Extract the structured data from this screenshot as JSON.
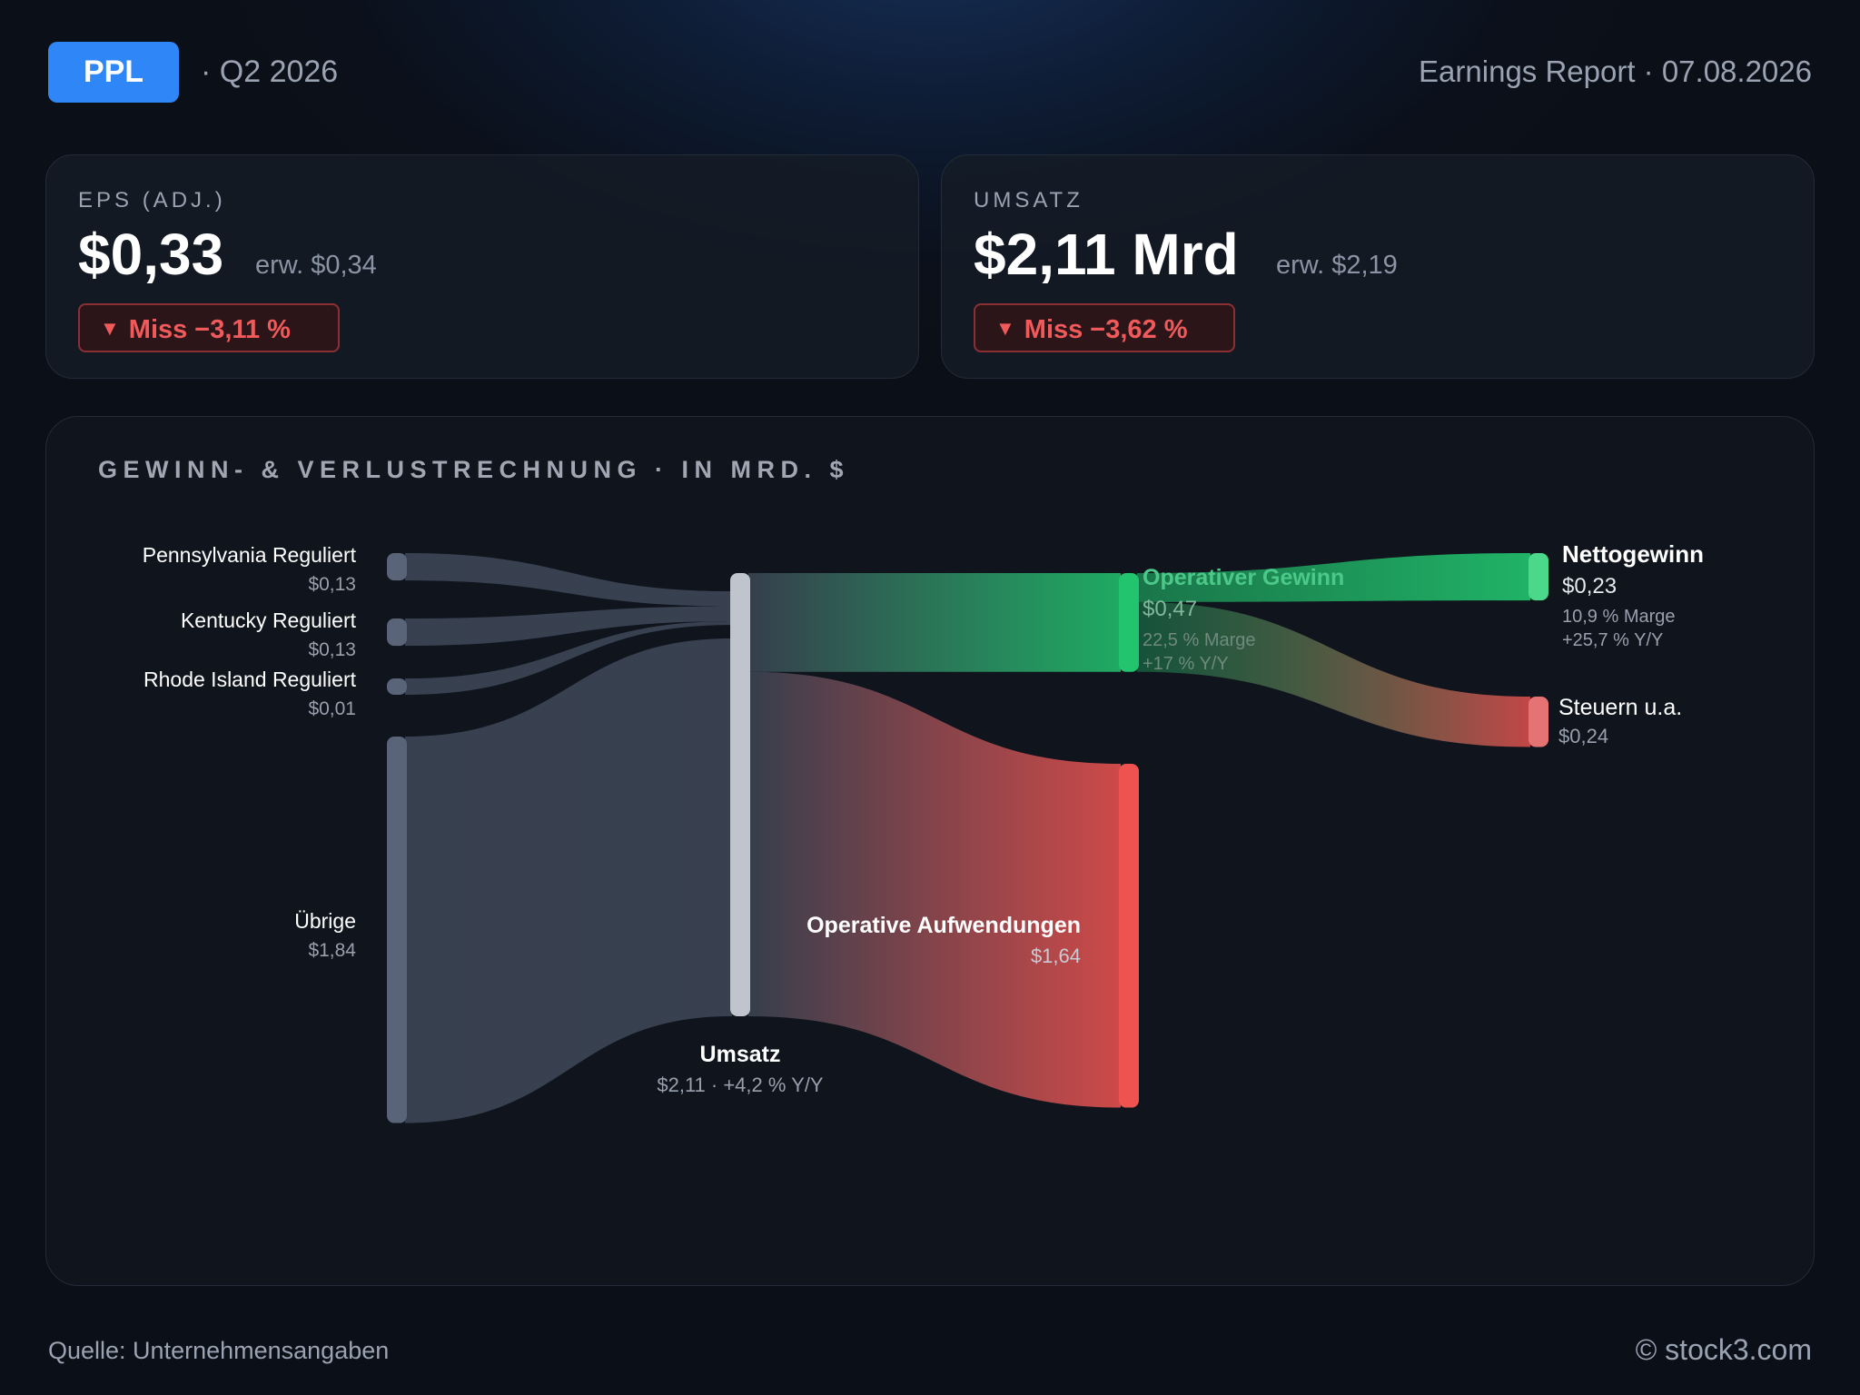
{
  "header": {
    "ticker": "PPL",
    "quarter": "· Q2 2026",
    "report": "Earnings Report · 07.08.2026"
  },
  "cards": {
    "eps": {
      "label": "EPS (ADJ.)",
      "value": "$0,33",
      "estimate": "erw. $0,34",
      "miss": "Miss −3,11 %"
    },
    "revenue": {
      "label": "UMSATZ",
      "value": "$2,11 Mrd",
      "estimate": "erw. $2,19",
      "miss": "Miss −3,62 %"
    }
  },
  "panel": {
    "title": "GEWINN- & VERLUSTRECHNUNG · IN MRD. $"
  },
  "chart_data": {
    "type": "sankey",
    "unit": "Mrd. $",
    "nodes": [
      {
        "id": "pa",
        "name": "Pennsylvania Reguliert",
        "value_label": "$0,13",
        "value": 0.13
      },
      {
        "id": "ky",
        "name": "Kentucky Reguliert",
        "value_label": "$0,13",
        "value": 0.13
      },
      {
        "id": "ri",
        "name": "Rhode Island Reguliert",
        "value_label": "$0,01",
        "value": 0.01
      },
      {
        "id": "other",
        "name": "Übrige",
        "value_label": "$1,84",
        "value": 1.84
      },
      {
        "id": "revenue",
        "name": "Umsatz",
        "value_label": "$2,11 · +4,2 % Y/Y",
        "value": 2.11
      },
      {
        "id": "opprofit",
        "name": "Operativer Gewinn",
        "value_label": "$0,47",
        "notes": [
          "22,5 % Marge",
          "+17 % Y/Y"
        ],
        "value": 0.47
      },
      {
        "id": "opex",
        "name": "Operative Aufwendungen",
        "value_label": "$1,64",
        "value": 1.64
      },
      {
        "id": "netincome",
        "name": "Nettogewinn",
        "value_label": "$0,23",
        "notes": [
          "10,9 % Marge",
          "+25,7 % Y/Y"
        ],
        "value": 0.23
      },
      {
        "id": "taxes",
        "name": "Steuern u.a.",
        "value_label": "$0,24",
        "value": 0.24
      }
    ],
    "links": [
      {
        "source": "pa",
        "target": "revenue",
        "value": 0.13
      },
      {
        "source": "ky",
        "target": "revenue",
        "value": 0.13
      },
      {
        "source": "ri",
        "target": "revenue",
        "value": 0.01
      },
      {
        "source": "other",
        "target": "revenue",
        "value": 1.84
      },
      {
        "source": "revenue",
        "target": "opprofit",
        "value": 0.47
      },
      {
        "source": "revenue",
        "target": "opex",
        "value": 1.64
      },
      {
        "source": "opprofit",
        "target": "netincome",
        "value": 0.23
      },
      {
        "source": "opprofit",
        "target": "taxes",
        "value": 0.24
      }
    ],
    "colors": {
      "segment_node": "#5a6478",
      "revenue_node": "#c0c4cd",
      "profit": "#22c46e",
      "profit_light": "#4bd88a",
      "expense": "#ef5350",
      "expense_light": "#e57373",
      "flow_grey": "#3a4352"
    }
  },
  "footer": {
    "source": "Quelle: Unternehmensangaben",
    "copyright": "© stock3.com"
  }
}
